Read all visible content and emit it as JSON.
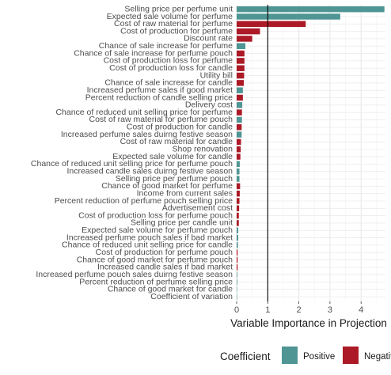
{
  "chart_data": {
    "type": "bar",
    "orientation": "horizontal",
    "xlabel": "Variable Importance in Projection",
    "ylabel": "",
    "xlim": [
      0,
      4.75
    ],
    "xticks": [
      0,
      1,
      2,
      3,
      4
    ],
    "reference_line": 1,
    "grid": true,
    "legend_position": "bottom",
    "legend": {
      "title": "Coefficient",
      "entries": [
        {
          "label": "Positive",
          "color": "#4E9593"
        },
        {
          "label": "Negative",
          "color": "#AB1A26"
        }
      ]
    },
    "categories": [
      "Selling price per perfume unit",
      "Expected sale volume for perfume",
      "Cost of raw material for perfume",
      "Cost of production for perfume",
      "Discount rate",
      "Chance of sale increase for perfume",
      "Chance of sale increase for perfume pouch",
      "Cost of production loss for perfume",
      "Cost of production loss for candle",
      "Utility bill",
      "Chance of sale increase for candle",
      "Increased perfume sales if good market",
      "Percent reduction of candle selling price",
      "Delivery cost",
      "Chance of reduced unit selling price for perfume",
      "Cost of raw material for perfume pouch",
      "Cost of production for candle",
      "Increased perfume sales duirng festive season",
      "Cost of raw material for candle",
      "Shop renovation",
      "Expected sale volume for candle",
      "Chance of reduced unit selling price for perfume pouch",
      "Increased candle sales duirng festive season",
      "Selling price per perfume pouch",
      "Chance of good market for perfume",
      "Income from current sales",
      "Percent reduction of perfume pouch selling price",
      "Advertisement cost",
      "Cost of production loss for perfume pouch",
      "Selling price per candle unit",
      "Expected sale volume for perfume pouch",
      "Increased perfume pouch sales if bad market",
      "Chance of reduced unit selling price for candle",
      "Cost of production for perfume pouch",
      "Chance of good market for perfume pouch",
      "Increased candle sales if bad market",
      "Increased perfume pouch sales duirng festive season",
      "Percent reduction of perfume selling price",
      "Chance of good market for candle",
      "Coefficient of variation"
    ],
    "series": [
      {
        "name": "Positive",
        "color": "#4E9593",
        "values": [
          4.75,
          3.33,
          0,
          0,
          0,
          0.28,
          0,
          0,
          0,
          0,
          0,
          0.2,
          0,
          0.18,
          0,
          0.17,
          0,
          0.16,
          0,
          0,
          0,
          0.1,
          0.09,
          0.09,
          0,
          0,
          0,
          0,
          0,
          0,
          0.05,
          0.05,
          0.04,
          0,
          0,
          0,
          0.02,
          0.02,
          0.01,
          0.005
        ]
      },
      {
        "name": "Negative",
        "color": "#AB1A26",
        "values": [
          0,
          0,
          2.22,
          0.75,
          0.5,
          0,
          0.25,
          0.25,
          0.25,
          0.24,
          0.23,
          0,
          0.2,
          0,
          0.17,
          0,
          0.16,
          0,
          0.14,
          0.13,
          0.12,
          0,
          0,
          0,
          0.11,
          0.1,
          0.09,
          0.08,
          0.07,
          0.07,
          0,
          0,
          0,
          0.03,
          0.03,
          0.03,
          0,
          0,
          0,
          0
        ]
      }
    ]
  }
}
